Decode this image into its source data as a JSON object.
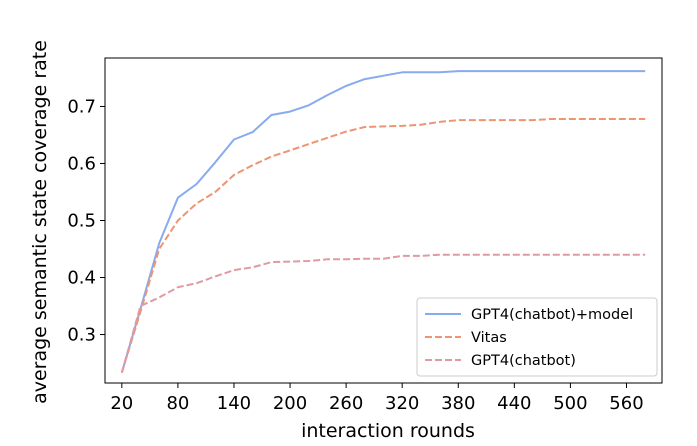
{
  "chart_data": {
    "type": "line",
    "title": "",
    "xlabel": "interaction rounds",
    "ylabel": "average semantic state coverage rate",
    "xlim": [
      2,
      598
    ],
    "ylim": [
      0.215,
      0.785
    ],
    "xticks": [
      20,
      80,
      140,
      200,
      260,
      320,
      380,
      440,
      500,
      560
    ],
    "yticks": [
      0.3,
      0.4,
      0.5,
      0.6,
      0.7
    ],
    "grid": false,
    "legend_position": "lower-right",
    "series": [
      {
        "name": "GPT4(chatbot)+model",
        "color": "#88aaee",
        "style": "solid",
        "x": [
          20,
          40,
          60,
          80,
          100,
          120,
          140,
          160,
          180,
          200,
          220,
          240,
          260,
          280,
          300,
          320,
          340,
          360,
          380,
          400,
          420,
          440,
          460,
          480,
          500,
          520,
          540,
          560,
          580
        ],
        "y": [
          0.233,
          0.345,
          0.46,
          0.54,
          0.564,
          0.602,
          0.642,
          0.655,
          0.685,
          0.691,
          0.702,
          0.72,
          0.736,
          0.748,
          0.754,
          0.76,
          0.76,
          0.76,
          0.762,
          0.762,
          0.762,
          0.762,
          0.762,
          0.762,
          0.762,
          0.762,
          0.762,
          0.762,
          0.762
        ]
      },
      {
        "name": "Vitas",
        "color": "#ee9473",
        "style": "dashed",
        "x": [
          20,
          40,
          60,
          80,
          100,
          120,
          140,
          160,
          180,
          200,
          220,
          240,
          260,
          280,
          300,
          320,
          340,
          360,
          380,
          400,
          420,
          440,
          460,
          480,
          500,
          520,
          540,
          560,
          580
        ],
        "y": [
          0.233,
          0.34,
          0.45,
          0.5,
          0.53,
          0.55,
          0.58,
          0.597,
          0.612,
          0.623,
          0.634,
          0.645,
          0.656,
          0.664,
          0.665,
          0.666,
          0.668,
          0.673,
          0.676,
          0.676,
          0.676,
          0.676,
          0.676,
          0.678,
          0.678,
          0.678,
          0.678,
          0.678,
          0.678
        ]
      },
      {
        "name": "GPT4(chatbot)",
        "color": "#e09aa2",
        "style": "dashed",
        "x": [
          20,
          40,
          60,
          80,
          100,
          120,
          140,
          160,
          180,
          200,
          220,
          240,
          260,
          280,
          300,
          320,
          340,
          360,
          380,
          400,
          420,
          440,
          460,
          480,
          500,
          520,
          540,
          560,
          580
        ],
        "y": [
          0.233,
          0.35,
          0.365,
          0.383,
          0.39,
          0.402,
          0.413,
          0.418,
          0.427,
          0.428,
          0.429,
          0.432,
          0.432,
          0.433,
          0.433,
          0.438,
          0.438,
          0.44,
          0.44,
          0.44,
          0.44,
          0.44,
          0.44,
          0.44,
          0.44,
          0.44,
          0.44,
          0.44,
          0.44
        ]
      }
    ]
  }
}
